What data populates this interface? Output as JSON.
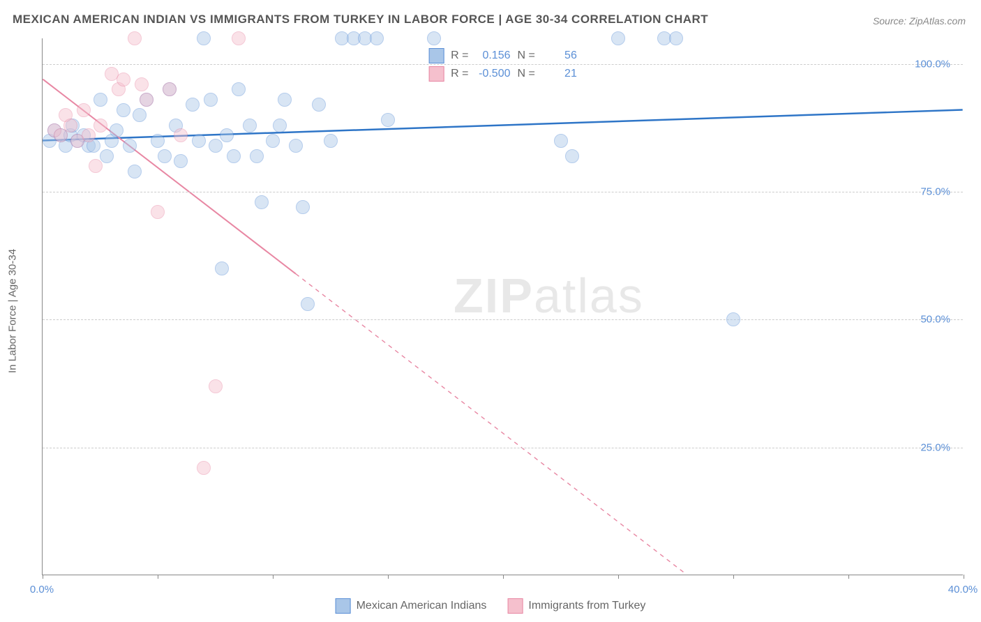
{
  "title": "MEXICAN AMERICAN INDIAN VS IMMIGRANTS FROM TURKEY IN LABOR FORCE | AGE 30-34 CORRELATION CHART",
  "source": "Source: ZipAtlas.com",
  "y_axis_title": "In Labor Force | Age 30-34",
  "watermark_bold": "ZIP",
  "watermark_light": "atlas",
  "chart": {
    "type": "scatter",
    "background_color": "#ffffff",
    "grid_color": "#cccccc",
    "axis_color": "#888888",
    "text_color": "#666666",
    "tick_label_color": "#5b8fd6",
    "xlim": [
      0,
      40
    ],
    "ylim": [
      0,
      105
    ],
    "x_ticks": [
      0,
      5,
      10,
      15,
      20,
      25,
      30,
      35,
      40
    ],
    "x_tick_labels": {
      "0": "0.0%",
      "40": "40.0%"
    },
    "y_ticks": [
      25,
      50,
      75,
      100
    ],
    "y_tick_labels": {
      "25": "25.0%",
      "50": "50.0%",
      "75": "75.0%",
      "100": "100.0%"
    },
    "point_radius": 10,
    "point_opacity": 0.45,
    "series": [
      {
        "name": "Mexican American Indians",
        "fill": "#a9c6e8",
        "stroke": "#5b8fd6",
        "line_color": "#2e75c7",
        "line_width": 2.5,
        "R": "0.156",
        "N": "56",
        "trend": {
          "x1": 0,
          "y1": 85,
          "x2": 40,
          "y2": 91,
          "solid_until_x": 40
        },
        "points": [
          [
            0.3,
            85
          ],
          [
            0.5,
            87
          ],
          [
            0.8,
            86
          ],
          [
            1.0,
            84
          ],
          [
            1.2,
            86
          ],
          [
            1.3,
            88
          ],
          [
            1.5,
            85
          ],
          [
            1.8,
            86
          ],
          [
            2.0,
            84
          ],
          [
            2.2,
            84
          ],
          [
            2.5,
            93
          ],
          [
            2.8,
            82
          ],
          [
            3.0,
            85
          ],
          [
            3.2,
            87
          ],
          [
            3.5,
            91
          ],
          [
            3.8,
            84
          ],
          [
            4.0,
            79
          ],
          [
            4.2,
            90
          ],
          [
            4.5,
            93
          ],
          [
            5.0,
            85
          ],
          [
            5.3,
            82
          ],
          [
            5.5,
            95
          ],
          [
            5.8,
            88
          ],
          [
            6.0,
            81
          ],
          [
            6.5,
            92
          ],
          [
            6.8,
            85
          ],
          [
            7.0,
            105
          ],
          [
            7.3,
            93
          ],
          [
            7.5,
            84
          ],
          [
            7.8,
            60
          ],
          [
            8.0,
            86
          ],
          [
            8.3,
            82
          ],
          [
            8.5,
            95
          ],
          [
            9.0,
            88
          ],
          [
            9.3,
            82
          ],
          [
            9.5,
            73
          ],
          [
            10.0,
            85
          ],
          [
            10.3,
            88
          ],
          [
            10.5,
            93
          ],
          [
            11.0,
            84
          ],
          [
            11.3,
            72
          ],
          [
            11.5,
            53
          ],
          [
            12.0,
            92
          ],
          [
            12.5,
            85
          ],
          [
            13.0,
            105
          ],
          [
            13.5,
            105
          ],
          [
            14.0,
            105
          ],
          [
            14.5,
            105
          ],
          [
            15.0,
            89
          ],
          [
            17.0,
            105
          ],
          [
            22.5,
            85
          ],
          [
            25.0,
            105
          ],
          [
            27.0,
            105
          ],
          [
            27.5,
            105
          ],
          [
            30.0,
            50
          ],
          [
            23.0,
            82
          ]
        ]
      },
      {
        "name": "Immigrants from Turkey",
        "fill": "#f5c0cd",
        "stroke": "#e887a3",
        "line_color": "#e887a3",
        "line_width": 2,
        "R": "-0.500",
        "N": "21",
        "trend": {
          "x1": 0,
          "y1": 97,
          "x2": 28,
          "y2": 0,
          "solid_until_x": 11
        },
        "points": [
          [
            0.5,
            87
          ],
          [
            0.8,
            86
          ],
          [
            1.0,
            90
          ],
          [
            1.2,
            88
          ],
          [
            1.5,
            85
          ],
          [
            1.8,
            91
          ],
          [
            2.0,
            86
          ],
          [
            2.3,
            80
          ],
          [
            2.5,
            88
          ],
          [
            3.0,
            98
          ],
          [
            3.3,
            95
          ],
          [
            3.5,
            97
          ],
          [
            4.0,
            105
          ],
          [
            4.3,
            96
          ],
          [
            4.5,
            93
          ],
          [
            5.0,
            71
          ],
          [
            5.5,
            95
          ],
          [
            6.0,
            86
          ],
          [
            7.0,
            21
          ],
          [
            7.5,
            37
          ],
          [
            8.5,
            105
          ]
        ]
      }
    ]
  },
  "legend_top": {
    "rows": [
      {
        "swatch_fill": "#a9c6e8",
        "swatch_stroke": "#5b8fd6",
        "r_label": "R =",
        "r_val": "0.156",
        "n_label": "N =",
        "n_val": "56"
      },
      {
        "swatch_fill": "#f5c0cd",
        "swatch_stroke": "#e887a3",
        "r_label": "R =",
        "r_val": "-0.500",
        "n_label": "N =",
        "n_val": "21"
      }
    ]
  },
  "legend_bottom": {
    "items": [
      {
        "swatch_fill": "#a9c6e8",
        "swatch_stroke": "#5b8fd6",
        "label": "Mexican American Indians"
      },
      {
        "swatch_fill": "#f5c0cd",
        "swatch_stroke": "#e887a3",
        "label": "Immigrants from Turkey"
      }
    ]
  }
}
